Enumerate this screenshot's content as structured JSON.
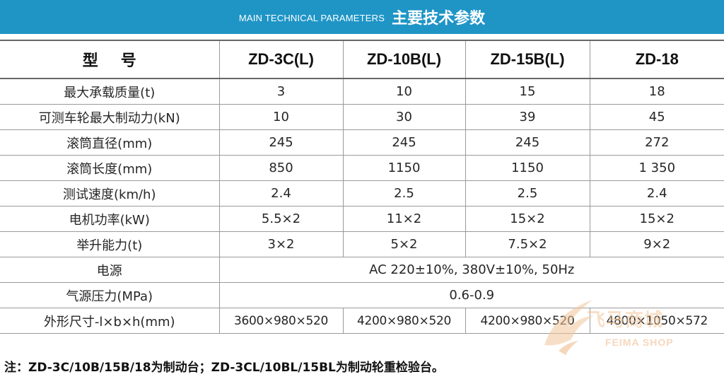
{
  "header": {
    "en_title": "MAIN TECHNICAL PARAMETERS",
    "cn_title": "主要技术参数",
    "background": "#1f95c6"
  },
  "table": {
    "header": [
      "型号",
      "ZD-3C(L)",
      "ZD-10B(L)",
      "ZD-15B(L)",
      "ZD-18"
    ],
    "rows": [
      {
        "label": "最大承载质量(t)",
        "values": [
          "3",
          "10",
          "15",
          "18"
        ]
      },
      {
        "label": "可测车轮最大制动力(kN)",
        "values": [
          "10",
          "30",
          "39",
          "45"
        ]
      },
      {
        "label": "滚筒直径(mm)",
        "values": [
          "245",
          "245",
          "245",
          "272"
        ]
      },
      {
        "label": "滚筒长度(mm)",
        "values": [
          "850",
          "1150",
          "1150",
          "1 350"
        ]
      },
      {
        "label": "测试速度(km/h)",
        "values": [
          "2.4",
          "2.5",
          "2.5",
          "2.4"
        ]
      },
      {
        "label": "电机功率(kW)",
        "values": [
          "5.5×2",
          "11×2",
          "15×2",
          "15×2"
        ]
      },
      {
        "label": "举升能力(t)",
        "values": [
          "3×2",
          "5×2",
          "7.5×2",
          "9×2"
        ]
      }
    ],
    "merged_rows": [
      {
        "label": "电源",
        "value": "AC 220±10%, 380V±10%, 50Hz"
      },
      {
        "label": "气源压力(MPa)",
        "value": "0.6-0.9"
      }
    ],
    "dims_row": {
      "label": "外形尺寸-l×b×h(mm)",
      "values": [
        "3600×980×520",
        "4200×980×520",
        "4200×980×520",
        "4800×1050×572"
      ]
    }
  },
  "note": "注：ZD-3C/10B/15B/18为制动台；ZD-3CL/10BL/15BL为制动轮重检验台。",
  "watermark": {
    "cn": "飞马商城",
    "en": "FEIMA SHOP",
    "color": "#f0b787"
  }
}
